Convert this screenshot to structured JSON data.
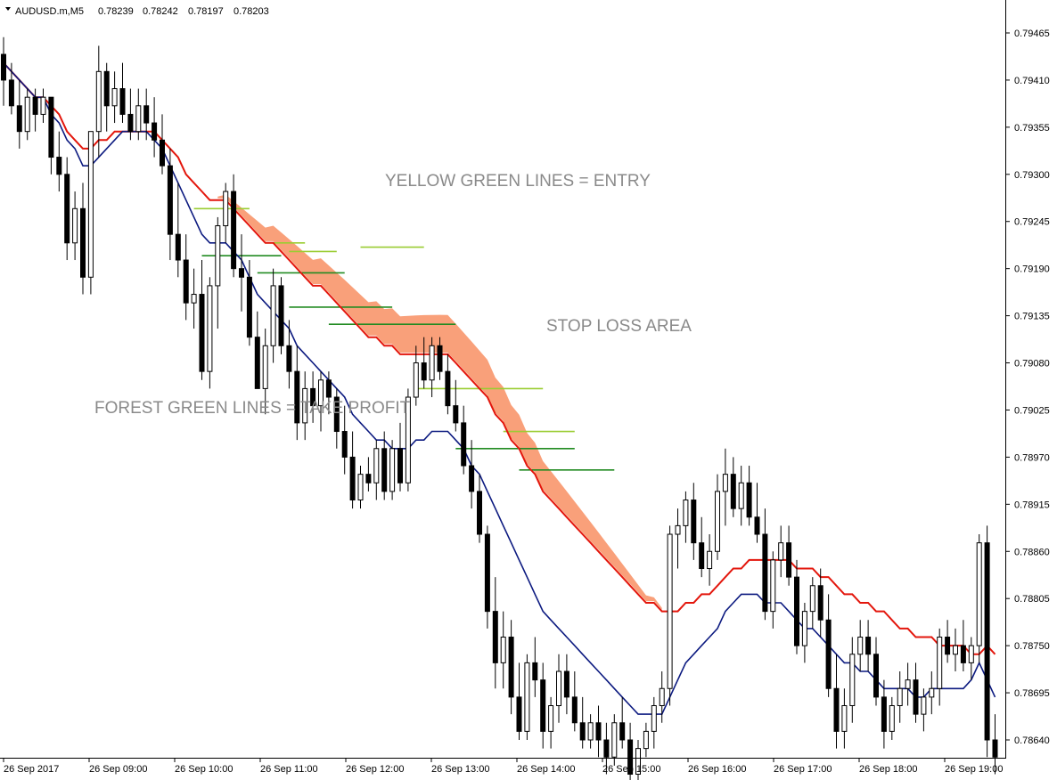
{
  "header": {
    "symbol": "AUDUSD.m,M5",
    "open": "0.78239",
    "high": "0.78242",
    "low": "0.78197",
    "close": "0.78203"
  },
  "chart_data": {
    "type": "candlestick",
    "price_ticks": [
      "0.79465",
      "0.79410",
      "0.79355",
      "0.79300",
      "0.79245",
      "0.79190",
      "0.79135",
      "0.79080",
      "0.79025",
      "0.78970",
      "0.78915",
      "0.78860",
      "0.78805",
      "0.78750",
      "0.78695",
      "0.78640"
    ],
    "time_ticks": [
      "26 Sep 2017",
      "26 Sep 09:00",
      "26 Sep 10:00",
      "26 Sep 11:00",
      "26 Sep 12:00",
      "26 Sep 13:00",
      "26 Sep 14:00",
      "26 Sep 15:00",
      "26 Sep 16:00",
      "26 Sep 17:00",
      "26 Sep 18:00",
      "26 Sep 19:00"
    ],
    "ylim": [
      0.7862,
      0.7949
    ],
    "candles": [
      [
        0.7944,
        0.7946,
        0.7938,
        0.7941
      ],
      [
        0.7941,
        0.7943,
        0.7937,
        0.7938
      ],
      [
        0.7938,
        0.7941,
        0.7933,
        0.7935
      ],
      [
        0.7935,
        0.794,
        0.7934,
        0.7939
      ],
      [
        0.7939,
        0.794,
        0.7935,
        0.7937
      ],
      [
        0.7937,
        0.794,
        0.7936,
        0.7939
      ],
      [
        0.7939,
        0.7939,
        0.793,
        0.7932
      ],
      [
        0.7932,
        0.7935,
        0.7928,
        0.793
      ],
      [
        0.793,
        0.7932,
        0.792,
        0.7922
      ],
      [
        0.7922,
        0.7928,
        0.792,
        0.7926
      ],
      [
        0.7926,
        0.7929,
        0.7916,
        0.7918
      ],
      [
        0.7918,
        0.7935,
        0.7916,
        0.7935
      ],
      [
        0.7935,
        0.7945,
        0.7932,
        0.7942
      ],
      [
        0.7942,
        0.7943,
        0.7935,
        0.7938
      ],
      [
        0.7938,
        0.7942,
        0.7936,
        0.794
      ],
      [
        0.794,
        0.7943,
        0.7936,
        0.7937
      ],
      [
        0.7937,
        0.794,
        0.7934,
        0.7935
      ],
      [
        0.7935,
        0.794,
        0.7934,
        0.7938
      ],
      [
        0.7938,
        0.794,
        0.7934,
        0.7936
      ],
      [
        0.7936,
        0.7939,
        0.7932,
        0.7934
      ],
      [
        0.7934,
        0.7937,
        0.793,
        0.7931
      ],
      [
        0.7931,
        0.7933,
        0.792,
        0.7923
      ],
      [
        0.7923,
        0.7929,
        0.7918,
        0.792
      ],
      [
        0.792,
        0.7923,
        0.7913,
        0.7915
      ],
      [
        0.7915,
        0.7919,
        0.7912,
        0.7916
      ],
      [
        0.7916,
        0.792,
        0.7906,
        0.7907
      ],
      [
        0.7907,
        0.7918,
        0.7905,
        0.7917
      ],
      [
        0.7917,
        0.7925,
        0.7912,
        0.7924
      ],
      [
        0.7924,
        0.7929,
        0.7922,
        0.7928
      ],
      [
        0.7928,
        0.793,
        0.7918,
        0.7919
      ],
      [
        0.7919,
        0.7923,
        0.7914,
        0.7918
      ],
      [
        0.7918,
        0.792,
        0.791,
        0.7911
      ],
      [
        0.7911,
        0.7914,
        0.7905,
        0.7905
      ],
      [
        0.7905,
        0.7912,
        0.7902,
        0.791
      ],
      [
        0.791,
        0.7919,
        0.7908,
        0.7917
      ],
      [
        0.7917,
        0.7918,
        0.7909,
        0.791
      ],
      [
        0.791,
        0.7913,
        0.7905,
        0.7907
      ],
      [
        0.7907,
        0.791,
        0.7899,
        0.7901
      ],
      [
        0.7901,
        0.7907,
        0.7899,
        0.7905
      ],
      [
        0.7905,
        0.7907,
        0.7901,
        0.7903
      ],
      [
        0.7903,
        0.7907,
        0.79,
        0.7906
      ],
      [
        0.7906,
        0.7907,
        0.7902,
        0.7904
      ],
      [
        0.7904,
        0.7905,
        0.7898,
        0.79
      ],
      [
        0.79,
        0.7903,
        0.7895,
        0.7897
      ],
      [
        0.7897,
        0.79,
        0.7891,
        0.7892
      ],
      [
        0.7892,
        0.7896,
        0.7891,
        0.7895
      ],
      [
        0.7895,
        0.7897,
        0.7893,
        0.7894
      ],
      [
        0.7894,
        0.7899,
        0.7892,
        0.7898
      ],
      [
        0.7898,
        0.79,
        0.7892,
        0.7893
      ],
      [
        0.7893,
        0.7899,
        0.7892,
        0.7898
      ],
      [
        0.7898,
        0.7901,
        0.7893,
        0.7894
      ],
      [
        0.7894,
        0.7905,
        0.7893,
        0.7904
      ],
      [
        0.7904,
        0.791,
        0.7903,
        0.7908
      ],
      [
        0.7908,
        0.7911,
        0.7905,
        0.7906
      ],
      [
        0.7906,
        0.7911,
        0.7904,
        0.791
      ],
      [
        0.791,
        0.7911,
        0.7906,
        0.7907
      ],
      [
        0.7907,
        0.7909,
        0.7902,
        0.7903
      ],
      [
        0.7903,
        0.7906,
        0.79,
        0.7901
      ],
      [
        0.7901,
        0.7903,
        0.7895,
        0.7896
      ],
      [
        0.7896,
        0.7899,
        0.7891,
        0.7893
      ],
      [
        0.7893,
        0.7895,
        0.7887,
        0.7888
      ],
      [
        0.7888,
        0.7889,
        0.7877,
        0.7879
      ],
      [
        0.7879,
        0.7883,
        0.787,
        0.7873
      ],
      [
        0.7873,
        0.7879,
        0.787,
        0.7876
      ],
      [
        0.7876,
        0.7878,
        0.7867,
        0.7869
      ],
      [
        0.7869,
        0.7873,
        0.7864,
        0.7865
      ],
      [
        0.7865,
        0.7874,
        0.7864,
        0.7873
      ],
      [
        0.7873,
        0.7876,
        0.7869,
        0.7871
      ],
      [
        0.7871,
        0.7873,
        0.7863,
        0.7865
      ],
      [
        0.7865,
        0.7869,
        0.7863,
        0.7868
      ],
      [
        0.7868,
        0.7874,
        0.7866,
        0.7872
      ],
      [
        0.7872,
        0.7874,
        0.7867,
        0.7869
      ],
      [
        0.7869,
        0.7872,
        0.7865,
        0.7866
      ],
      [
        0.7866,
        0.7869,
        0.7863,
        0.7864
      ],
      [
        0.7864,
        0.7867,
        0.7863,
        0.7866
      ],
      [
        0.7866,
        0.7868,
        0.7862,
        0.7864
      ],
      [
        0.7864,
        0.7866,
        0.786,
        0.7862
      ],
      [
        0.7862,
        0.7867,
        0.7861,
        0.7866
      ],
      [
        0.7866,
        0.7869,
        0.7863,
        0.7864
      ],
      [
        0.7864,
        0.7866,
        0.7858,
        0.786
      ],
      [
        0.786,
        0.7864,
        0.7858,
        0.7863
      ],
      [
        0.7863,
        0.7866,
        0.7862,
        0.7865
      ],
      [
        0.7865,
        0.7869,
        0.7863,
        0.7868
      ],
      [
        0.7868,
        0.7872,
        0.7866,
        0.787
      ],
      [
        0.787,
        0.7889,
        0.7868,
        0.7888
      ],
      [
        0.7888,
        0.7891,
        0.7884,
        0.7889
      ],
      [
        0.7889,
        0.7893,
        0.7887,
        0.7892
      ],
      [
        0.7892,
        0.7894,
        0.7885,
        0.7887
      ],
      [
        0.7887,
        0.789,
        0.7883,
        0.7884
      ],
      [
        0.7884,
        0.7888,
        0.7882,
        0.7886
      ],
      [
        0.7886,
        0.7895,
        0.7885,
        0.7893
      ],
      [
        0.7893,
        0.7898,
        0.7889,
        0.7895
      ],
      [
        0.7895,
        0.7897,
        0.789,
        0.7891
      ],
      [
        0.7891,
        0.7896,
        0.7889,
        0.7894
      ],
      [
        0.7894,
        0.7896,
        0.7889,
        0.789
      ],
      [
        0.789,
        0.7894,
        0.7887,
        0.7888
      ],
      [
        0.7888,
        0.7891,
        0.7878,
        0.7879
      ],
      [
        0.7879,
        0.7886,
        0.7877,
        0.7885
      ],
      [
        0.7885,
        0.7889,
        0.7883,
        0.7887
      ],
      [
        0.7887,
        0.7889,
        0.7882,
        0.7883
      ],
      [
        0.7883,
        0.7885,
        0.7874,
        0.7875
      ],
      [
        0.7875,
        0.788,
        0.7873,
        0.7879
      ],
      [
        0.7879,
        0.7883,
        0.7877,
        0.7882
      ],
      [
        0.7882,
        0.7884,
        0.7876,
        0.7878
      ],
      [
        0.7878,
        0.7881,
        0.7869,
        0.787
      ],
      [
        0.787,
        0.7874,
        0.7863,
        0.7865
      ],
      [
        0.7865,
        0.787,
        0.7863,
        0.7868
      ],
      [
        0.7868,
        0.7876,
        0.7866,
        0.7874
      ],
      [
        0.7874,
        0.7878,
        0.7872,
        0.7876
      ],
      [
        0.7876,
        0.7878,
        0.7872,
        0.7874
      ],
      [
        0.7874,
        0.7876,
        0.7868,
        0.7869
      ],
      [
        0.7869,
        0.7871,
        0.7863,
        0.7865
      ],
      [
        0.7865,
        0.7869,
        0.7864,
        0.7868
      ],
      [
        0.7868,
        0.7872,
        0.7866,
        0.787
      ],
      [
        0.787,
        0.7873,
        0.7868,
        0.7871
      ],
      [
        0.7871,
        0.7873,
        0.7866,
        0.7867
      ],
      [
        0.7867,
        0.787,
        0.7865,
        0.7869
      ],
      [
        0.7869,
        0.7872,
        0.7867,
        0.787
      ],
      [
        0.787,
        0.7877,
        0.7868,
        0.7876
      ],
      [
        0.7876,
        0.7878,
        0.7873,
        0.7874
      ],
      [
        0.7874,
        0.7877,
        0.7872,
        0.7875
      ],
      [
        0.7875,
        0.7878,
        0.7872,
        0.7873
      ],
      [
        0.7873,
        0.7876,
        0.7871,
        0.7875
      ],
      [
        0.7875,
        0.7888,
        0.7873,
        0.7887
      ],
      [
        0.7887,
        0.7889,
        0.7862,
        0.7864
      ],
      [
        0.7864,
        0.7867,
        0.786,
        0.7862
      ]
    ],
    "ma_red": [
      0.7943,
      0.7942,
      0.7941,
      0.794,
      0.7939,
      0.7939,
      0.7938,
      0.7937,
      0.7935,
      0.7934,
      0.7933,
      0.7933,
      0.7934,
      0.7934,
      0.7935,
      0.7935,
      0.7935,
      0.7935,
      0.7935,
      0.7935,
      0.7934,
      0.7933,
      0.7932,
      0.793,
      0.7929,
      0.7928,
      0.7927,
      0.7927,
      0.7927,
      0.7926,
      0.7925,
      0.7924,
      0.7923,
      0.7922,
      0.7922,
      0.7921,
      0.792,
      0.7919,
      0.7918,
      0.7917,
      0.7917,
      0.7916,
      0.7915,
      0.7914,
      0.7913,
      0.7912,
      0.7911,
      0.7911,
      0.791,
      0.791,
      0.7909,
      0.7909,
      0.7909,
      0.7909,
      0.7909,
      0.7909,
      0.7909,
      0.7908,
      0.7907,
      0.7906,
      0.7905,
      0.7904,
      0.7902,
      0.7901,
      0.7899,
      0.7898,
      0.7896,
      0.7895,
      0.7893,
      0.7892,
      0.7891,
      0.789,
      0.7889,
      0.7888,
      0.7887,
      0.7886,
      0.7885,
      0.7884,
      0.7883,
      0.7882,
      0.7881,
      0.788,
      0.788,
      0.7879,
      0.7879,
      0.7879,
      0.788,
      0.788,
      0.7881,
      0.7881,
      0.7882,
      0.7883,
      0.7884,
      0.7884,
      0.7885,
      0.7885,
      0.7885,
      0.7885,
      0.7885,
      0.7885,
      0.7884,
      0.7884,
      0.7884,
      0.7883,
      0.7883,
      0.7882,
      0.7881,
      0.7881,
      0.788,
      0.788,
      0.7879,
      0.7879,
      0.7878,
      0.7877,
      0.7877,
      0.7876,
      0.7876,
      0.7876,
      0.7875,
      0.7875,
      0.7875,
      0.7875,
      0.7874,
      0.7874,
      0.7875,
      0.7874
    ],
    "ma_blue": [
      0.7943,
      0.7942,
      0.7941,
      0.794,
      0.7939,
      0.7939,
      0.7937,
      0.7936,
      0.7934,
      0.7933,
      0.7931,
      0.7931,
      0.7932,
      0.7933,
      0.7934,
      0.7935,
      0.7935,
      0.7935,
      0.7935,
      0.7934,
      0.7933,
      0.7931,
      0.7929,
      0.7927,
      0.7925,
      0.7923,
      0.7922,
      0.7922,
      0.7922,
      0.7921,
      0.792,
      0.7918,
      0.7916,
      0.7915,
      0.7914,
      0.7913,
      0.7912,
      0.791,
      0.7909,
      0.7908,
      0.7907,
      0.7906,
      0.7905,
      0.7904,
      0.7902,
      0.7901,
      0.79,
      0.7899,
      0.7899,
      0.7898,
      0.7898,
      0.7898,
      0.7899,
      0.7899,
      0.79,
      0.79,
      0.79,
      0.7899,
      0.7898,
      0.7896,
      0.7895,
      0.7893,
      0.7891,
      0.7889,
      0.7887,
      0.7885,
      0.7883,
      0.7881,
      0.7879,
      0.7878,
      0.7877,
      0.7876,
      0.7875,
      0.7874,
      0.7873,
      0.7872,
      0.7871,
      0.787,
      0.7869,
      0.7868,
      0.7867,
      0.7867,
      0.7867,
      0.7867,
      0.7869,
      0.7871,
      0.7873,
      0.7874,
      0.7875,
      0.7876,
      0.7877,
      0.7879,
      0.788,
      0.7881,
      0.7881,
      0.7881,
      0.788,
      0.788,
      0.788,
      0.7879,
      0.7878,
      0.7877,
      0.7877,
      0.7876,
      0.7875,
      0.7874,
      0.7873,
      0.7873,
      0.7872,
      0.7872,
      0.7871,
      0.787,
      0.787,
      0.787,
      0.787,
      0.7869,
      0.7869,
      0.787,
      0.787,
      0.787,
      0.787,
      0.787,
      0.7871,
      0.7873,
      0.7871,
      0.7869
    ],
    "annotations": {
      "entry": "YELLOW GREEN LINES = ENTRY",
      "stop": "STOP LOSS AREA",
      "tp": "FOREST GREEN LINES = TAKE PROFIT"
    },
    "colors": {
      "ma_red": "#e3160c",
      "ma_blue": "#0c1a80",
      "entry": "#9acd32",
      "take_profit": "#228b22",
      "stop_area": "#f9a07a",
      "candle": "#000000"
    }
  }
}
